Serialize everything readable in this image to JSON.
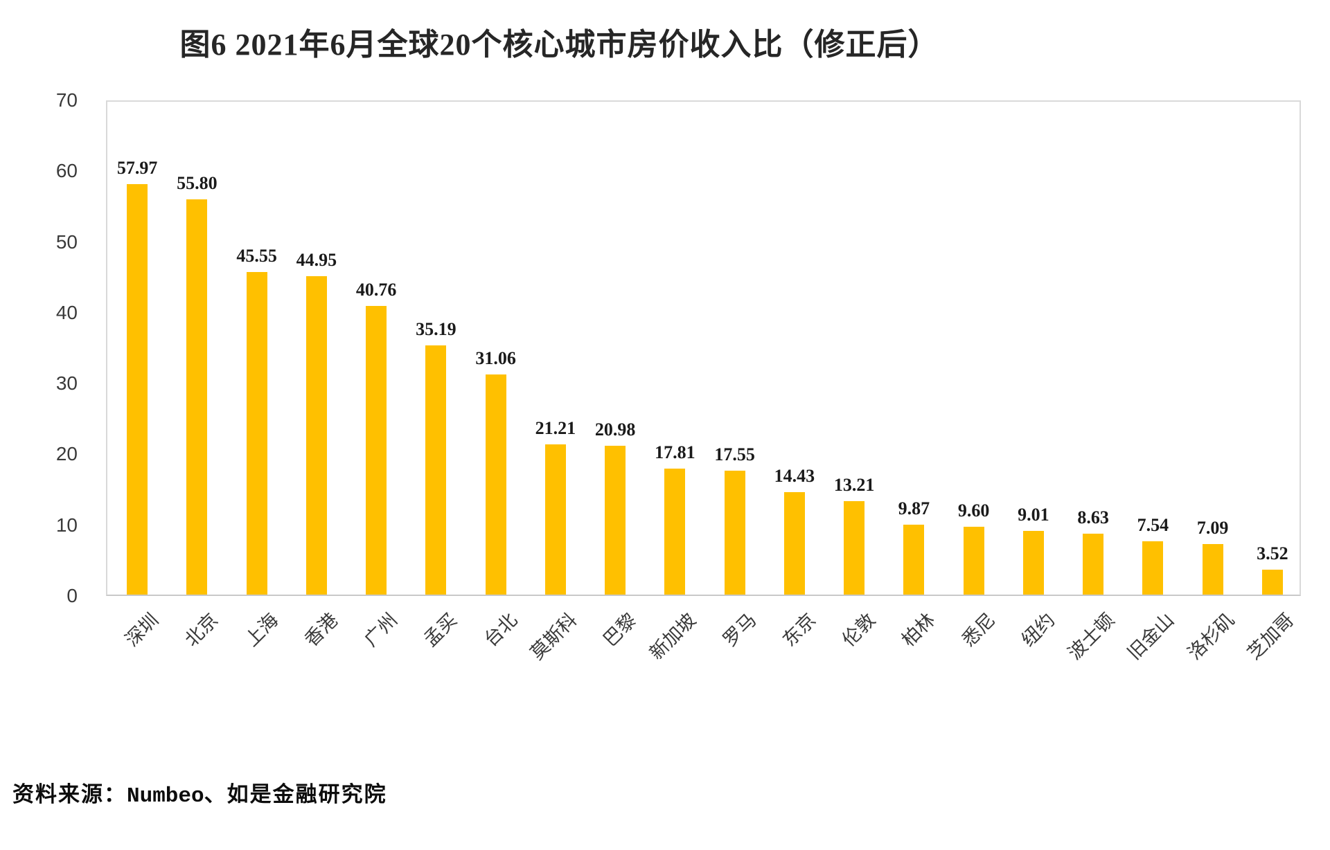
{
  "title": "图6 2021年6月全球20个核心城市房价收入比（修正后）",
  "source": {
    "prefix": "资料来源：",
    "name": "Numbeo",
    "suffix": "、如是金融研究院"
  },
  "colors": {
    "bar": "#FFC000",
    "plot_frame": "#D9D9D9",
    "axis_line": "#C8C8C8",
    "title_text": "#262626",
    "data_label_text": "#1A1A1A",
    "tick_text": "#3A3A3A"
  },
  "chart_data": {
    "type": "bar",
    "title": "图6 2021年6月全球20个核心城市房价收入比（修正后）",
    "categories": [
      "深圳",
      "北京",
      "上海",
      "香港",
      "广州",
      "孟买",
      "台北",
      "莫斯科",
      "巴黎",
      "新加坡",
      "罗马",
      "东京",
      "伦敦",
      "柏林",
      "悉尼",
      "纽约",
      "波士顿",
      "旧金山",
      "洛杉矶",
      "芝加哥"
    ],
    "values": [
      57.97,
      55.8,
      45.55,
      44.95,
      40.76,
      35.19,
      31.06,
      21.21,
      20.98,
      17.81,
      17.55,
      14.43,
      13.21,
      9.87,
      9.6,
      9.01,
      8.63,
      7.54,
      7.09,
      3.52
    ],
    "data_labels": [
      "57.97",
      "55.80",
      "45.55",
      "44.95",
      "40.76",
      "35.19",
      "31.06",
      "21.21",
      "20.98",
      "17.81",
      "17.55",
      "14.43",
      "13.21",
      "9.87",
      "9.60",
      "9.01",
      "8.63",
      "7.54",
      "7.09",
      "3.52"
    ],
    "xlabel": "",
    "ylabel": "",
    "ylim": [
      0,
      70
    ],
    "yticks": [
      0,
      10,
      20,
      30,
      40,
      50,
      60,
      70
    ],
    "grid": false,
    "legend": false,
    "bar_color": "#FFC000",
    "source_text": "资料来源：Numbeo、如是金融研究院"
  }
}
